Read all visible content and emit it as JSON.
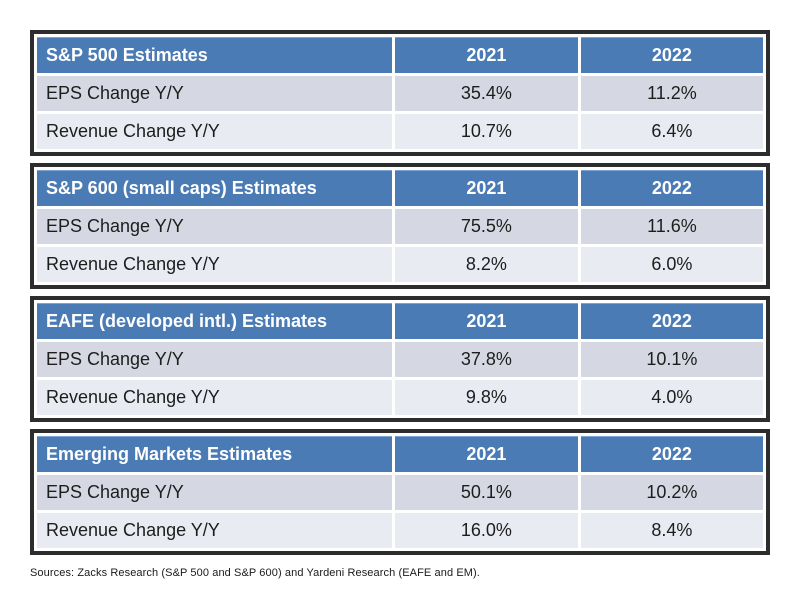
{
  "source_note": "Sources: Zacks Research (S&P 500 and S&P 600) and Yardeni Research (EAFE and EM).",
  "colors": {
    "header_bg": "#4a7bb5",
    "header_text": "#ffffff",
    "row_eps_bg": "#d5d8e2",
    "row_revenue_bg": "#e9ebf2",
    "table_border": "#2d2d2d",
    "body_text": "#1d1d1d"
  },
  "chart_data": [
    {
      "type": "table",
      "title": "S&P 500 Estimates",
      "columns": [
        "2021",
        "2022"
      ],
      "rows": [
        {
          "label": "EPS Change Y/Y",
          "values": [
            "35.4%",
            "11.2%"
          ]
        },
        {
          "label": "Revenue Change Y/Y",
          "values": [
            "10.7%",
            "6.4%"
          ]
        }
      ]
    },
    {
      "type": "table",
      "title": "S&P 600 (small caps) Estimates",
      "columns": [
        "2021",
        "2022"
      ],
      "rows": [
        {
          "label": "EPS Change Y/Y",
          "values": [
            "75.5%",
            "11.6%"
          ]
        },
        {
          "label": "Revenue Change Y/Y",
          "values": [
            "8.2%",
            "6.0%"
          ]
        }
      ]
    },
    {
      "type": "table",
      "title": "EAFE (developed intl.) Estimates",
      "columns": [
        "2021",
        "2022"
      ],
      "rows": [
        {
          "label": "EPS Change Y/Y",
          "values": [
            "37.8%",
            "10.1%"
          ]
        },
        {
          "label": "Revenue Change Y/Y",
          "values": [
            "9.8%",
            "4.0%"
          ]
        }
      ]
    },
    {
      "type": "table",
      "title": "Emerging Markets Estimates",
      "columns": [
        "2021",
        "2022"
      ],
      "rows": [
        {
          "label": "EPS Change Y/Y",
          "values": [
            "50.1%",
            "10.2%"
          ]
        },
        {
          "label": "Revenue Change Y/Y",
          "values": [
            "16.0%",
            "8.4%"
          ]
        }
      ]
    }
  ]
}
